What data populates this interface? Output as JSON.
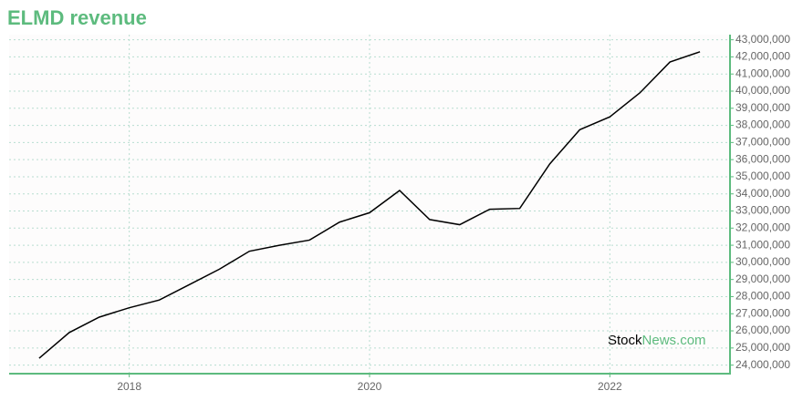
{
  "chart_data": {
    "type": "line",
    "title": "ELMD revenue",
    "x": [
      2017.25,
      2017.5,
      2017.75,
      2018,
      2018.25,
      2018.5,
      2018.75,
      2019,
      2019.25,
      2019.5,
      2019.75,
      2020,
      2020.25,
      2020.5,
      2020.75,
      2021,
      2021.25,
      2021.5,
      2021.75,
      2022,
      2022.25,
      2022.5,
      2022.75
    ],
    "series": [
      {
        "name": "ELMD revenue",
        "color": "#000000",
        "values": [
          24400000,
          25900000,
          26800000,
          27350000,
          27800000,
          28700000,
          29600000,
          30650000,
          31000000,
          31300000,
          32350000,
          32900000,
          34200000,
          32500000,
          32200000,
          33100000,
          33150000,
          35750000,
          37750000,
          38500000,
          39900000,
          41700000,
          42300000
        ]
      }
    ],
    "xlim": [
      2017,
      2023
    ],
    "xticks": [
      2018,
      2020,
      2022
    ],
    "ylim": [
      23500000,
      43300000
    ],
    "yticks": [
      {
        "value": 24000000,
        "label": "24,000,000"
      },
      {
        "value": 25000000,
        "label": "25,000,000"
      },
      {
        "value": 26000000,
        "label": "26,000,000"
      },
      {
        "value": 27000000,
        "label": "27,000,000"
      },
      {
        "value": 28000000,
        "label": "28,000,000"
      },
      {
        "value": 29000000,
        "label": "29,000,000"
      },
      {
        "value": 30000000,
        "label": "30,000,000"
      },
      {
        "value": 31000000,
        "label": "31,000,000"
      },
      {
        "value": 32000000,
        "label": "32,000,000"
      },
      {
        "value": 33000000,
        "label": "33,000,000"
      },
      {
        "value": 34000000,
        "label": "34,000,000"
      },
      {
        "value": 35000000,
        "label": "35,000,000"
      },
      {
        "value": 36000000,
        "label": "36,000,000"
      },
      {
        "value": 37000000,
        "label": "37,000,000"
      },
      {
        "value": 38000000,
        "label": "38,000,000"
      },
      {
        "value": 39000000,
        "label": "39,000,000"
      },
      {
        "value": 40000000,
        "label": "40,000,000"
      },
      {
        "value": 41000000,
        "label": "41,000,000"
      },
      {
        "value": 42000000,
        "label": "42,000,000"
      },
      {
        "value": 43000000,
        "label": "43,000,000"
      }
    ],
    "grid": true,
    "axis_color": "#5dbb7e"
  },
  "watermark": [
    "Stock",
    "News.com"
  ]
}
